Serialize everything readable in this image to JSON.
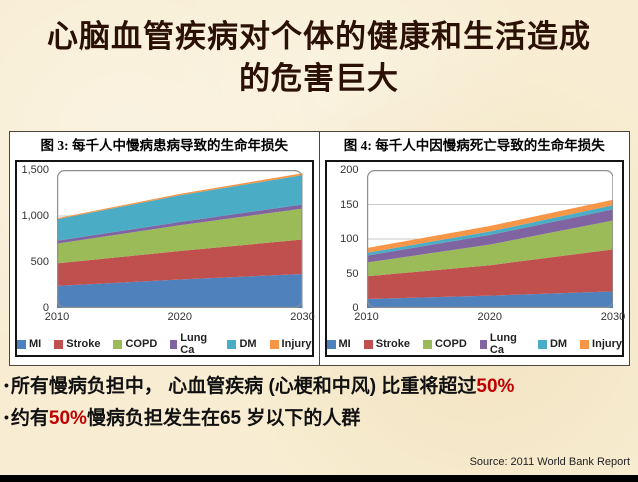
{
  "slide": {
    "title_line1": "心脑血管疾病对个体的健康和生活造成",
    "title_line2": "的危害巨大",
    "bullet_char": "•",
    "bullets": {
      "b1": {
        "pre": "所有慢病负担中， 心血管疾病 (心梗和中风) 比重将超过",
        "highlight": "50%",
        "post": ""
      },
      "b2": {
        "pre": "约有",
        "highlight": "50%",
        "post": "慢病负担发生在65 岁以下的人群"
      }
    },
    "source": "Source: 2011  World Bank Report"
  },
  "colors": {
    "background": "#f8edd2",
    "title_text": "#2b1105",
    "highlight_red": "#c00000",
    "series_blue": "#4F81BD",
    "series_red": "#C0504D",
    "series_green": "#9BBB59",
    "series_purple": "#8064A2",
    "series_teal": "#4BACC6",
    "series_orange": "#F79646"
  },
  "chart_data": [
    {
      "id": "fig3",
      "type": "area",
      "stacked": true,
      "title": "图 3:  每千人中慢病患病导致的生命年损失",
      "x": [
        2010,
        2020,
        2030
      ],
      "xticks": [
        "2010",
        "2020",
        "2030"
      ],
      "ylim": [
        0,
        1500
      ],
      "yticks": [
        0,
        500,
        1000,
        1500
      ],
      "ytick_labels": [
        "0",
        "500",
        "1,000",
        "1,500"
      ],
      "grid": true,
      "legend_position": "bottom",
      "series": [
        {
          "name": "MI",
          "color": "#4F81BD",
          "values": [
            240,
            310,
            370
          ]
        },
        {
          "name": "Stroke",
          "color": "#C0504D",
          "values": [
            245,
            310,
            375
          ]
        },
        {
          "name": "COPD",
          "color": "#9BBB59",
          "values": [
            215,
            280,
            335
          ]
        },
        {
          "name": "Lung Ca",
          "color": "#8064A2",
          "values": [
            30,
            35,
            45
          ]
        },
        {
          "name": "DM",
          "color": "#4BACC6",
          "values": [
            235,
            290,
            320
          ]
        },
        {
          "name": "Injury",
          "color": "#F79646",
          "values": [
            10,
            15,
            20
          ]
        }
      ]
    },
    {
      "id": "fig4",
      "type": "area",
      "stacked": true,
      "title": "图 4:  每千人中因慢病死亡导致的生命年损失",
      "x": [
        2010,
        2020,
        2030
      ],
      "xticks": [
        "2010",
        "2020",
        "2030"
      ],
      "ylim": [
        0,
        200
      ],
      "yticks": [
        0,
        50,
        100,
        150,
        200
      ],
      "ytick_labels": [
        "0",
        "50",
        "100",
        "150",
        "200"
      ],
      "grid": true,
      "legend_position": "bottom",
      "series": [
        {
          "name": "MI",
          "color": "#4F81BD",
          "values": [
            13,
            18,
            24
          ]
        },
        {
          "name": "Stroke",
          "color": "#C0504D",
          "values": [
            33,
            44,
            61
          ]
        },
        {
          "name": "COPD",
          "color": "#9BBB59",
          "values": [
            20,
            30,
            42
          ]
        },
        {
          "name": "Lung Ca",
          "color": "#8064A2",
          "values": [
            10,
            14,
            16
          ]
        },
        {
          "name": "DM",
          "color": "#4BACC6",
          "values": [
            4,
            5,
            6
          ]
        },
        {
          "name": "Injury",
          "color": "#F79646",
          "values": [
            7,
            8,
            8
          ]
        }
      ]
    }
  ]
}
